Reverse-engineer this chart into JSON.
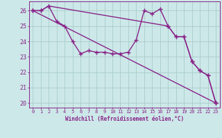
{
  "xlabel": "Windchill (Refroidissement éolien,°C)",
  "xlim": [
    -0.5,
    23.5
  ],
  "ylim": [
    19.7,
    26.6
  ],
  "yticks": [
    20,
    21,
    22,
    23,
    24,
    25,
    26
  ],
  "xticks": [
    0,
    1,
    2,
    3,
    4,
    5,
    6,
    7,
    8,
    9,
    10,
    11,
    12,
    13,
    14,
    15,
    16,
    17,
    18,
    19,
    20,
    21,
    22,
    23
  ],
  "background_color": "#cce8e8",
  "grid_color": "#aacccc",
  "line_color": "#882288",
  "line_width": 1.0,
  "marker": "+",
  "marker_size": 4,
  "marker_edge_width": 1.0,
  "series": [
    {
      "x": [
        0,
        1,
        2,
        3,
        4,
        5,
        6,
        7,
        8,
        9,
        10,
        11,
        12,
        13,
        14,
        15,
        16,
        17,
        18,
        19,
        20,
        21,
        22,
        23
      ],
      "y": [
        26.0,
        26.0,
        26.3,
        25.3,
        25.0,
        24.0,
        23.2,
        23.4,
        23.3,
        23.3,
        23.2,
        23.2,
        23.3,
        24.1,
        26.0,
        25.8,
        26.1,
        25.0,
        24.3,
        24.3,
        22.7,
        22.1,
        21.8,
        20.0
      ]
    },
    {
      "x": [
        0,
        23
      ],
      "y": [
        26.0,
        20.0
      ]
    },
    {
      "x": [
        0,
        1,
        2,
        17,
        18,
        19,
        20,
        21,
        22,
        23
      ],
      "y": [
        26.0,
        26.0,
        26.3,
        25.0,
        24.3,
        24.3,
        22.7,
        22.1,
        21.8,
        20.0
      ]
    }
  ]
}
